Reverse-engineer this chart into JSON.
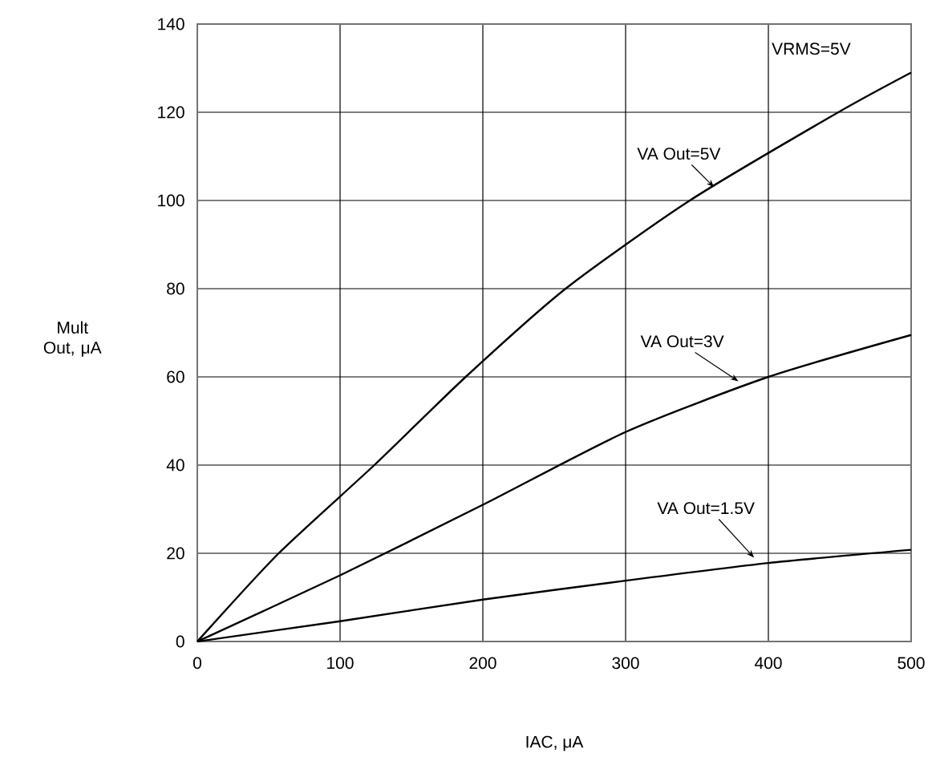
{
  "chart_data": {
    "type": "line",
    "xlabel": "IAC, μA",
    "ylabel": "Mult Out, μA",
    "series": [
      {
        "color": "#000000",
        "x": [
          0,
          57,
          124,
          188,
          258,
          345,
          449,
          500
        ],
        "values": [
          0,
          20,
          40,
          60,
          80,
          100,
          120,
          129
        ]
      },
      {
        "color": "#000000",
        "x": [
          0,
          100,
          200,
          300,
          400,
          500
        ],
        "values": [
          0,
          15,
          31,
          47.5,
          60,
          69.5
        ]
      },
      {
        "color": "#000000",
        "x": [
          0,
          100,
          200,
          300,
          400,
          500
        ],
        "values": [
          0,
          4.6,
          9.5,
          13.8,
          17.8,
          20.8
        ]
      }
    ],
    "annotations": [
      {
        "text": "VA Out=5V",
        "x": 362,
        "y": 103
      },
      {
        "text": "VA Out=3V",
        "x": 379,
        "y": 59
      },
      {
        "text": "VA Out=1.5V",
        "x": 390,
        "y": 19
      },
      "VRMS=5V"
    ],
    "xlim": [
      0,
      500
    ],
    "ylim": [
      0,
      140
    ],
    "xticks": [
      0,
      100,
      200,
      300,
      400,
      500
    ],
    "yticks": [
      0,
      20,
      40,
      60,
      80,
      100,
      120,
      140
    ],
    "grid": true,
    "marker": "none",
    "line_style": "solid"
  }
}
